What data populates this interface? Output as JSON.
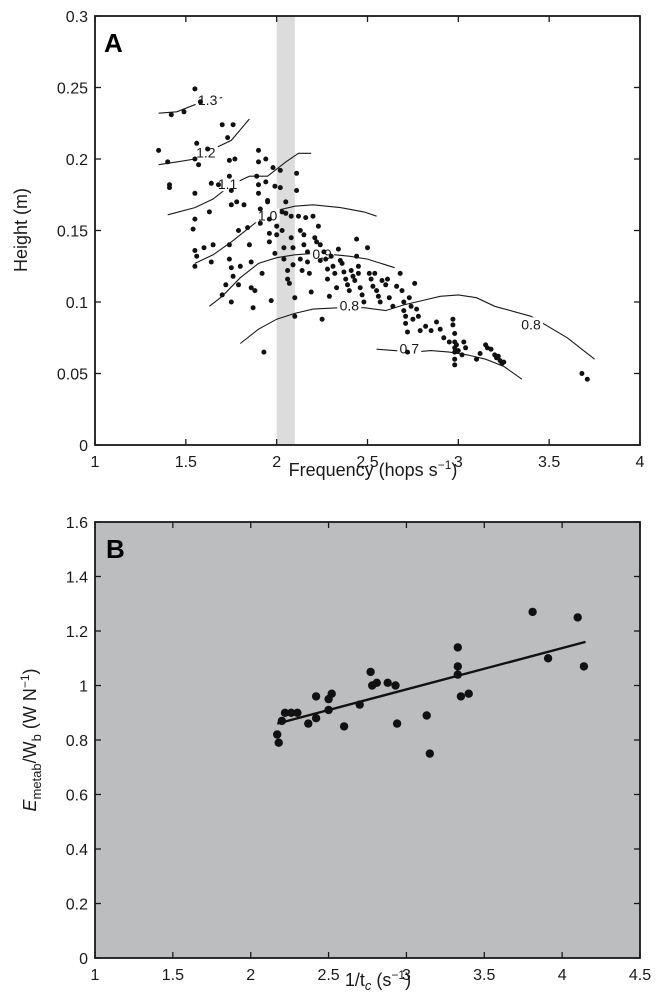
{
  "colors": {
    "panel_b_bg": "#bcbdbf",
    "band": "#dcdcdc",
    "ink": "#1a1a1a"
  },
  "chart_data": [
    {
      "panel": "A",
      "type": "scatter",
      "xlabel": "Frequency (hops s",
      "xlabel_sup": "−1",
      "xlabel_end": ")",
      "ylabel": "Height (m)",
      "xlim": [
        1,
        4
      ],
      "ylim": [
        0,
        0.3
      ],
      "xticks": [
        "1",
        "1.5",
        "2",
        "2.5",
        "3",
        "3.5",
        "4"
      ],
      "yticks": [
        "0",
        "0.05",
        "0.1",
        "0.15",
        "0.2",
        "0.25",
        "0.3"
      ],
      "band": [
        2.0,
        2.1
      ],
      "points": [
        [
          1.35,
          0.206
        ],
        [
          1.4,
          0.198
        ],
        [
          1.42,
          0.231
        ],
        [
          1.41,
          0.182
        ],
        [
          1.41,
          0.18
        ],
        [
          1.49,
          0.233
        ],
        [
          1.55,
          0.249
        ],
        [
          1.56,
          0.211
        ],
        [
          1.55,
          0.2
        ],
        [
          1.55,
          0.176
        ],
        [
          1.55,
          0.158
        ],
        [
          1.54,
          0.151
        ],
        [
          1.55,
          0.136
        ],
        [
          1.56,
          0.132
        ],
        [
          1.55,
          0.125
        ],
        [
          1.57,
          0.196
        ],
        [
          1.58,
          0.24
        ],
        [
          1.6,
          0.138
        ],
        [
          1.62,
          0.207
        ],
        [
          1.64,
          0.183
        ],
        [
          1.63,
          0.163
        ],
        [
          1.64,
          0.128
        ],
        [
          1.65,
          0.14
        ],
        [
          1.68,
          0.182
        ],
        [
          1.7,
          0.224
        ],
        [
          1.7,
          0.105
        ],
        [
          1.72,
          0.112
        ],
        [
          1.73,
          0.215
        ],
        [
          1.74,
          0.199
        ],
        [
          1.74,
          0.188
        ],
        [
          1.75,
          0.178
        ],
        [
          1.76,
          0.224
        ],
        [
          1.75,
          0.168
        ],
        [
          1.74,
          0.14
        ],
        [
          1.74,
          0.13
        ],
        [
          1.75,
          0.124
        ],
        [
          1.76,
          0.118
        ],
        [
          1.75,
          0.1
        ],
        [
          1.77,
          0.2
        ],
        [
          1.78,
          0.17
        ],
        [
          1.79,
          0.15
        ],
        [
          1.79,
          0.112
        ],
        [
          1.8,
          0.125
        ],
        [
          1.82,
          0.168
        ],
        [
          1.84,
          0.152
        ],
        [
          1.85,
          0.14
        ],
        [
          1.86,
          0.128
        ],
        [
          1.86,
          0.11
        ],
        [
          1.87,
          0.096
        ],
        [
          1.88,
          0.108
        ],
        [
          1.89,
          0.188
        ],
        [
          1.9,
          0.206
        ],
        [
          1.9,
          0.198
        ],
        [
          1.9,
          0.182
        ],
        [
          1.9,
          0.176
        ],
        [
          1.91,
          0.165
        ],
        [
          1.91,
          0.155
        ],
        [
          1.92,
          0.12
        ],
        [
          1.93,
          0.065
        ],
        [
          1.94,
          0.2
        ],
        [
          1.94,
          0.184
        ],
        [
          1.95,
          0.171
        ],
        [
          1.95,
          0.17
        ],
        [
          1.96,
          0.158
        ],
        [
          1.96,
          0.148
        ],
        [
          1.96,
          0.142
        ],
        [
          1.97,
          0.101
        ],
        [
          1.98,
          0.194
        ],
        [
          1.99,
          0.181
        ],
        [
          1.99,
          0.134
        ],
        [
          2.0,
          0.153
        ],
        [
          2.0,
          0.147
        ],
        [
          2.02,
          0.192
        ],
        [
          2.02,
          0.18
        ],
        [
          2.03,
          0.163
        ],
        [
          2.03,
          0.15
        ],
        [
          2.04,
          0.138
        ],
        [
          2.04,
          0.13
        ],
        [
          2.05,
          0.17
        ],
        [
          2.05,
          0.162
        ],
        [
          2.06,
          0.122
        ],
        [
          2.06,
          0.116
        ],
        [
          2.07,
          0.113
        ],
        [
          2.08,
          0.16
        ],
        [
          2.08,
          0.145
        ],
        [
          2.09,
          0.138
        ],
        [
          2.09,
          0.126
        ],
        [
          2.1,
          0.103
        ],
        [
          2.1,
          0.09
        ],
        [
          2.11,
          0.19
        ],
        [
          2.11,
          0.178
        ],
        [
          2.12,
          0.16
        ],
        [
          2.13,
          0.15
        ],
        [
          2.13,
          0.13
        ],
        [
          2.14,
          0.122
        ],
        [
          2.15,
          0.147
        ],
        [
          2.15,
          0.14
        ],
        [
          2.16,
          0.159
        ],
        [
          2.17,
          0.135
        ],
        [
          2.17,
          0.128
        ],
        [
          2.18,
          0.12
        ],
        [
          2.19,
          0.107
        ],
        [
          2.2,
          0.16
        ],
        [
          2.21,
          0.145
        ],
        [
          2.22,
          0.142
        ],
        [
          2.23,
          0.153
        ],
        [
          2.24,
          0.14
        ],
        [
          2.24,
          0.129
        ],
        [
          2.25,
          0.088
        ],
        [
          2.26,
          0.135
        ],
        [
          2.27,
          0.13
        ],
        [
          2.28,
          0.123
        ],
        [
          2.28,
          0.116
        ],
        [
          2.29,
          0.104
        ],
        [
          2.3,
          0.132
        ],
        [
          2.31,
          0.125
        ],
        [
          2.32,
          0.12
        ],
        [
          2.33,
          0.11
        ],
        [
          2.34,
          0.137
        ],
        [
          2.35,
          0.129
        ],
        [
          2.36,
          0.127
        ],
        [
          2.37,
          0.121
        ],
        [
          2.38,
          0.116
        ],
        [
          2.39,
          0.112
        ],
        [
          2.4,
          0.108
        ],
        [
          2.41,
          0.122
        ],
        [
          2.42,
          0.118
        ],
        [
          2.43,
          0.115
        ],
        [
          2.44,
          0.144
        ],
        [
          2.44,
          0.132
        ],
        [
          2.45,
          0.125
        ],
        [
          2.45,
          0.12
        ],
        [
          2.46,
          0.11
        ],
        [
          2.47,
          0.105
        ],
        [
          2.48,
          0.1
        ],
        [
          2.5,
          0.138
        ],
        [
          2.51,
          0.12
        ],
        [
          2.52,
          0.116
        ],
        [
          2.53,
          0.111
        ],
        [
          2.54,
          0.12
        ],
        [
          2.55,
          0.108
        ],
        [
          2.56,
          0.104
        ],
        [
          2.57,
          0.1
        ],
        [
          2.58,
          0.115
        ],
        [
          2.6,
          0.112
        ],
        [
          2.61,
          0.116
        ],
        [
          2.62,
          0.103
        ],
        [
          2.64,
          0.097
        ],
        [
          2.66,
          0.111
        ],
        [
          2.68,
          0.12
        ],
        [
          2.69,
          0.108
        ],
        [
          2.7,
          0.1
        ],
        [
          2.7,
          0.094
        ],
        [
          2.71,
          0.09
        ],
        [
          2.71,
          0.085
        ],
        [
          2.72,
          0.079
        ],
        [
          2.72,
          0.065
        ],
        [
          2.73,
          0.103
        ],
        [
          2.74,
          0.097
        ],
        [
          2.75,
          0.088
        ],
        [
          2.76,
          0.113
        ],
        [
          2.77,
          0.095
        ],
        [
          2.78,
          0.09
        ],
        [
          2.79,
          0.08
        ],
        [
          2.82,
          0.083
        ],
        [
          2.85,
          0.08
        ],
        [
          2.88,
          0.086
        ],
        [
          2.9,
          0.081
        ],
        [
          2.92,
          0.075
        ],
        [
          2.95,
          0.072
        ],
        [
          2.97,
          0.088
        ],
        [
          2.97,
          0.084
        ],
        [
          2.98,
          0.078
        ],
        [
          2.98,
          0.072
        ],
        [
          2.98,
          0.068
        ],
        [
          2.98,
          0.065
        ],
        [
          2.98,
          0.06
        ],
        [
          2.98,
          0.056
        ],
        [
          2.99,
          0.07
        ],
        [
          3.0,
          0.066
        ],
        [
          3.02,
          0.063
        ],
        [
          3.03,
          0.072
        ],
        [
          3.04,
          0.068
        ],
        [
          3.1,
          0.06
        ],
        [
          3.12,
          0.064
        ],
        [
          3.15,
          0.07
        ],
        [
          3.16,
          0.068
        ],
        [
          3.18,
          0.067
        ],
        [
          3.2,
          0.063
        ],
        [
          3.21,
          0.061
        ],
        [
          3.22,
          0.062
        ],
        [
          3.23,
          0.059
        ],
        [
          3.24,
          0.057
        ],
        [
          3.25,
          0.058
        ],
        [
          3.68,
          0.05
        ],
        [
          3.71,
          0.046
        ]
      ],
      "contours": [
        {
          "label": "1.3",
          "label_x": 1.62,
          "label_y": 0.24,
          "pts": [
            [
              1.35,
              0.232
            ],
            [
              1.45,
              0.233
            ],
            [
              1.55,
              0.238
            ],
            [
              1.62,
              0.241
            ],
            [
              1.7,
              0.243
            ]
          ]
        },
        {
          "label": "1.2",
          "label_x": 1.61,
          "label_y": 0.203,
          "pts": [
            [
              1.35,
              0.196
            ],
            [
              1.45,
              0.198
            ],
            [
              1.55,
              0.2
            ],
            [
              1.65,
              0.207
            ],
            [
              1.75,
              0.213
            ],
            [
              1.85,
              0.228
            ]
          ]
        },
        {
          "label": "1.1",
          "label_x": 1.73,
          "label_y": 0.181,
          "pts": [
            [
              1.4,
              0.161
            ],
            [
              1.55,
              0.166
            ],
            [
              1.65,
              0.172
            ],
            [
              1.75,
              0.182
            ],
            [
              1.85,
              0.188
            ],
            [
              1.95,
              0.188
            ],
            [
              2.05,
              0.198
            ],
            [
              2.12,
              0.204
            ],
            [
              2.19,
              0.204
            ]
          ]
        },
        {
          "label": "1.0",
          "label_x": 1.95,
          "label_y": 0.159,
          "pts": [
            [
              1.55,
              0.127
            ],
            [
              1.65,
              0.133
            ],
            [
              1.75,
              0.142
            ],
            [
              1.85,
              0.152
            ],
            [
              1.92,
              0.159
            ],
            [
              2.0,
              0.164
            ],
            [
              2.1,
              0.167
            ],
            [
              2.2,
              0.168
            ],
            [
              2.35,
              0.166
            ],
            [
              2.48,
              0.163
            ],
            [
              2.55,
              0.16
            ]
          ]
        },
        {
          "label": "0.9",
          "label_x": 2.25,
          "label_y": 0.132,
          "pts": [
            [
              1.63,
              0.097
            ],
            [
              1.7,
              0.104
            ],
            [
              1.8,
              0.117
            ],
            [
              1.9,
              0.127
            ],
            [
              2.0,
              0.131
            ],
            [
              2.1,
              0.133
            ],
            [
              2.2,
              0.134
            ],
            [
              2.32,
              0.133
            ],
            [
              2.4,
              0.132
            ],
            [
              2.5,
              0.13
            ],
            [
              2.55,
              0.128
            ],
            [
              2.65,
              0.124
            ]
          ]
        },
        {
          "label": "0.8",
          "label_x": 2.4,
          "label_y": 0.096,
          "pts": [
            [
              1.8,
              0.071
            ],
            [
              1.9,
              0.081
            ],
            [
              2.0,
              0.088
            ],
            [
              2.1,
              0.092
            ],
            [
              2.2,
              0.095
            ],
            [
              2.35,
              0.096
            ],
            [
              2.48,
              0.096
            ],
            [
              2.6,
              0.094
            ],
            [
              2.7,
              0.098
            ],
            [
              2.8,
              0.101
            ],
            [
              2.9,
              0.104
            ],
            [
              3.0,
              0.105
            ],
            [
              3.1,
              0.103
            ],
            [
              3.2,
              0.097
            ],
            [
              3.4,
              0.09
            ],
            [
              3.6,
              0.075
            ],
            [
              3.75,
              0.06
            ]
          ]
        },
        {
          "label": "0.8",
          "label_x": 3.4,
          "label_y": 0.083,
          "pts": []
        },
        {
          "label": "0.7",
          "label_x": 2.73,
          "label_y": 0.066,
          "pts": [
            [
              2.55,
              0.067
            ],
            [
              2.65,
              0.066
            ],
            [
              2.75,
              0.065
            ],
            [
              2.85,
              0.066
            ],
            [
              2.95,
              0.065
            ],
            [
              3.05,
              0.063
            ],
            [
              3.15,
              0.06
            ],
            [
              3.25,
              0.055
            ],
            [
              3.35,
              0.046
            ]
          ]
        }
      ]
    },
    {
      "panel": "B",
      "type": "scatter",
      "xlabel": "1/t",
      "xlabel_sub": "c",
      "xlabel_mid": " (s",
      "xlabel_sup": "−1",
      "xlabel_end": ")",
      "ylabel_main": "E",
      "ylabel_sub1": "metab",
      "ylabel_mid": "/W",
      "ylabel_sub2": "b",
      "ylabel_units": " (W N",
      "ylabel_sup": "−1",
      "ylabel_end": ")",
      "xlim": [
        1,
        4.5
      ],
      "ylim": [
        0,
        1.6
      ],
      "xticks": [
        "1",
        "1.5",
        "2",
        "2.5",
        "3",
        "3.5",
        "4",
        "4.5"
      ],
      "yticks": [
        "0",
        "0.2",
        "0.4",
        "0.6",
        "0.8",
        "1",
        "1.2",
        "1.4",
        "1.6"
      ],
      "points": [
        [
          2.17,
          0.82
        ],
        [
          2.18,
          0.79
        ],
        [
          2.2,
          0.87
        ],
        [
          2.22,
          0.9
        ],
        [
          2.26,
          0.9
        ],
        [
          2.3,
          0.9
        ],
        [
          2.37,
          0.86
        ],
        [
          2.42,
          0.88
        ],
        [
          2.42,
          0.96
        ],
        [
          2.5,
          0.91
        ],
        [
          2.5,
          0.95
        ],
        [
          2.52,
          0.97
        ],
        [
          2.6,
          0.85
        ],
        [
          2.7,
          0.93
        ],
        [
          2.77,
          1.05
        ],
        [
          2.78,
          1.0
        ],
        [
          2.81,
          1.01
        ],
        [
          2.88,
          1.01
        ],
        [
          2.93,
          1.0
        ],
        [
          2.94,
          0.86
        ],
        [
          3.13,
          0.89
        ],
        [
          3.15,
          0.75
        ],
        [
          3.33,
          1.14
        ],
        [
          3.33,
          1.07
        ],
        [
          3.33,
          1.04
        ],
        [
          3.35,
          0.96
        ],
        [
          3.4,
          0.97
        ],
        [
          3.81,
          1.27
        ],
        [
          3.91,
          1.1
        ],
        [
          4.1,
          1.25
        ],
        [
          4.14,
          1.07
        ]
      ],
      "fit_line": [
        [
          2.17,
          0.86
        ],
        [
          4.15,
          1.16
        ]
      ]
    }
  ]
}
